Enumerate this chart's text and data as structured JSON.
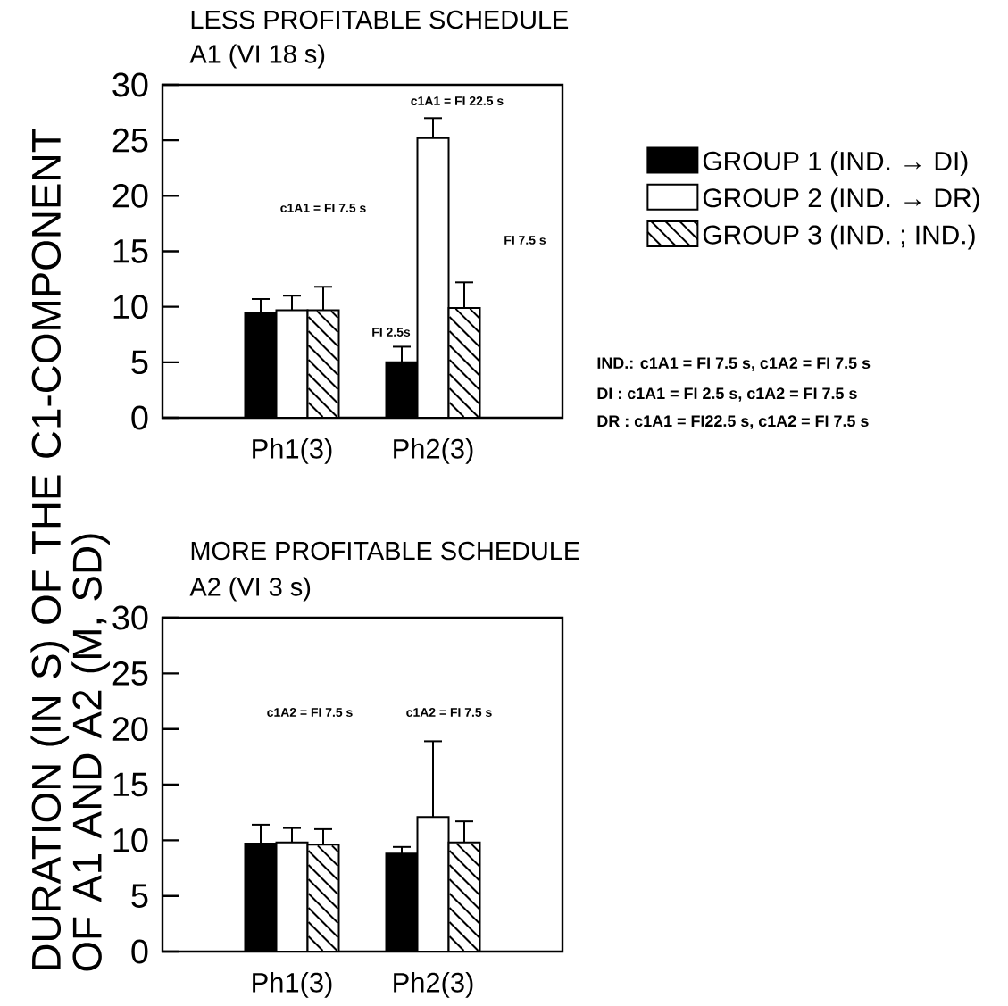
{
  "chart_data": [
    {
      "type": "bar",
      "title": "LESS PROFITABLE SCHEDULE",
      "subtitle": "A1 (VI 18 s)",
      "ylabel": "DURATION (IN S) OF THE C1-COMPONENT OF A1 AND A2 (M, SD)",
      "categories": [
        "Ph1(3)",
        "Ph2(3)"
      ],
      "series": [
        {
          "name": "GROUP 1 (IND. → DI)",
          "color": "#000000",
          "values": [
            9.5,
            5.0
          ],
          "errors": [
            1.2,
            1.4
          ]
        },
        {
          "name": "GROUP 2 (IND. → DR)",
          "color": "#ffffff",
          "values": [
            9.7,
            25.2
          ],
          "errors": [
            1.3,
            1.8
          ]
        },
        {
          "name": "GROUP 3 (IND. ; IND.)",
          "color": "#ffffff",
          "values": [
            9.7,
            9.9
          ],
          "errors": [
            2.1,
            2.3
          ]
        }
      ],
      "ylim": [
        0,
        30
      ],
      "yticks": [
        0,
        5,
        10,
        15,
        20,
        25,
        30
      ],
      "legend": "right",
      "annotations": [
        "c1A1 = FI 7.5 s",
        "c1A1 = FI 22.5 s",
        "FI 2.5s",
        "FI 7.5 s",
        "IND.: c1A1 = FI 7.5 s, c1A2 = FI 7.5 s",
        "DI   : c1A1 = FI 2.5 s, c1A2 = FI 7.5 s",
        "DR : c1A1 = FI22.5 s, c1A2 = FI 7.5 s"
      ]
    },
    {
      "type": "bar",
      "title": "MORE PROFITABLE SCHEDULE",
      "subtitle": "A2 (VI 3 s)",
      "categories": [
        "Ph1(3)",
        "Ph2(3)"
      ],
      "series": [
        {
          "color": "#000000",
          "values": [
            9.7,
            8.8
          ],
          "errors": [
            1.7,
            0.6
          ]
        },
        {
          "color": "#ffffff",
          "values": [
            9.8,
            12.1
          ],
          "errors": [
            1.3,
            6.8
          ]
        },
        {
          "color": "#ffffff",
          "values": [
            9.6,
            9.8
          ],
          "errors": [
            1.4,
            1.9
          ]
        }
      ],
      "ylim": [
        0,
        30
      ],
      "yticks": [
        0,
        5,
        10,
        15,
        20,
        25,
        30
      ],
      "annotations": [
        "c1A2 = FI 7.5 s",
        "c1A2 = FI 7.5 s"
      ]
    }
  ]
}
